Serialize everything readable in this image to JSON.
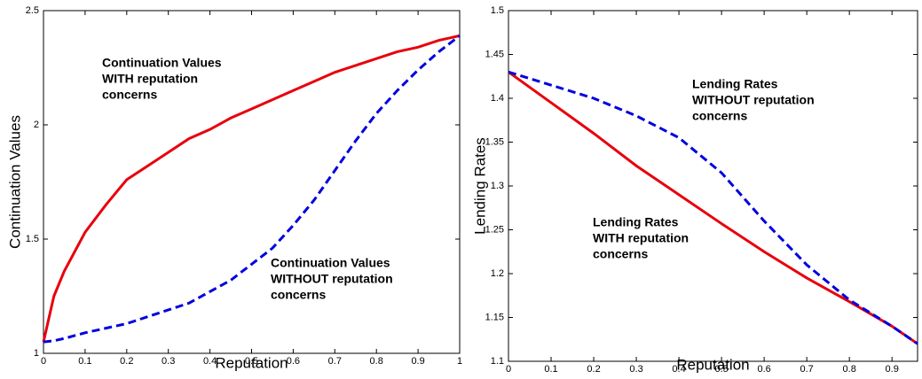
{
  "chart_data": [
    {
      "type": "line",
      "xlabel": "Reputation",
      "ylabel": "Continuation Values",
      "x": [
        0,
        0.025,
        0.05,
        0.1,
        0.15,
        0.2,
        0.25,
        0.3,
        0.35,
        0.4,
        0.45,
        0.5,
        0.55,
        0.6,
        0.65,
        0.7,
        0.75,
        0.8,
        0.85,
        0.9,
        0.95,
        1
      ],
      "series": [
        {
          "color": "#e8000b",
          "linestyle": "solid",
          "values": [
            1.05,
            1.25,
            1.36,
            1.53,
            1.65,
            1.76,
            1.82,
            1.88,
            1.94,
            1.98,
            2.03,
            2.07,
            2.11,
            2.15,
            2.19,
            2.23,
            2.26,
            2.29,
            2.32,
            2.34,
            2.37,
            2.39
          ]
        },
        {
          "color": "#0000e0",
          "linestyle": "dashed",
          "values": [
            1.05,
            1.055,
            1.065,
            1.09,
            1.11,
            1.13,
            1.16,
            1.19,
            1.22,
            1.27,
            1.32,
            1.39,
            1.46,
            1.56,
            1.67,
            1.8,
            1.93,
            2.05,
            2.15,
            2.24,
            2.32,
            2.39
          ]
        }
      ],
      "annotations": [
        {
          "color": "#e8000b",
          "lines": [
            "Continuation Values",
            "WITH reputation",
            "concerns"
          ]
        },
        {
          "color": "#0000e0",
          "lines": [
            "Continuation Values",
            "WITHOUT reputation",
            "concerns"
          ]
        }
      ],
      "xlim": [
        0,
        1
      ],
      "xticks": [
        0,
        0.1,
        0.2,
        0.3,
        0.4,
        0.5,
        0.6,
        0.7,
        0.8,
        0.9,
        1
      ],
      "ylim": [
        1,
        2.5
      ],
      "yticks": [
        1,
        1.5,
        2,
        2.5
      ]
    },
    {
      "type": "line",
      "xlabel": "Reputation",
      "ylabel": "Lending Rates",
      "x": [
        0,
        0.1,
        0.2,
        0.3,
        0.4,
        0.5,
        0.6,
        0.7,
        0.8,
        0.9,
        0.96
      ],
      "series": [
        {
          "color": "#e8000b",
          "linestyle": "solid",
          "values": [
            1.43,
            1.395,
            1.36,
            1.323,
            1.29,
            1.257,
            1.225,
            1.195,
            1.168,
            1.14,
            1.12
          ]
        },
        {
          "color": "#0000e0",
          "linestyle": "dashed",
          "values": [
            1.43,
            1.415,
            1.4,
            1.38,
            1.355,
            1.315,
            1.26,
            1.21,
            1.17,
            1.14,
            1.12
          ]
        }
      ],
      "annotations": [
        {
          "color": "#0000e0",
          "lines": [
            "Lending Rates",
            "WITHOUT reputation",
            "concerns"
          ]
        },
        {
          "color": "#e8000b",
          "lines": [
            "Lending Rates",
            "WITH reputation",
            "concerns"
          ]
        }
      ],
      "xlim": [
        0,
        0.96
      ],
      "xticks": [
        0,
        0.1,
        0.2,
        0.3,
        0.4,
        0.5,
        0.6,
        0.7,
        0.8,
        0.9
      ],
      "ylim": [
        1.1,
        1.5
      ],
      "yticks": [
        1.1,
        1.15,
        1.2,
        1.25,
        1.3,
        1.35,
        1.4,
        1.45,
        1.5
      ]
    }
  ]
}
